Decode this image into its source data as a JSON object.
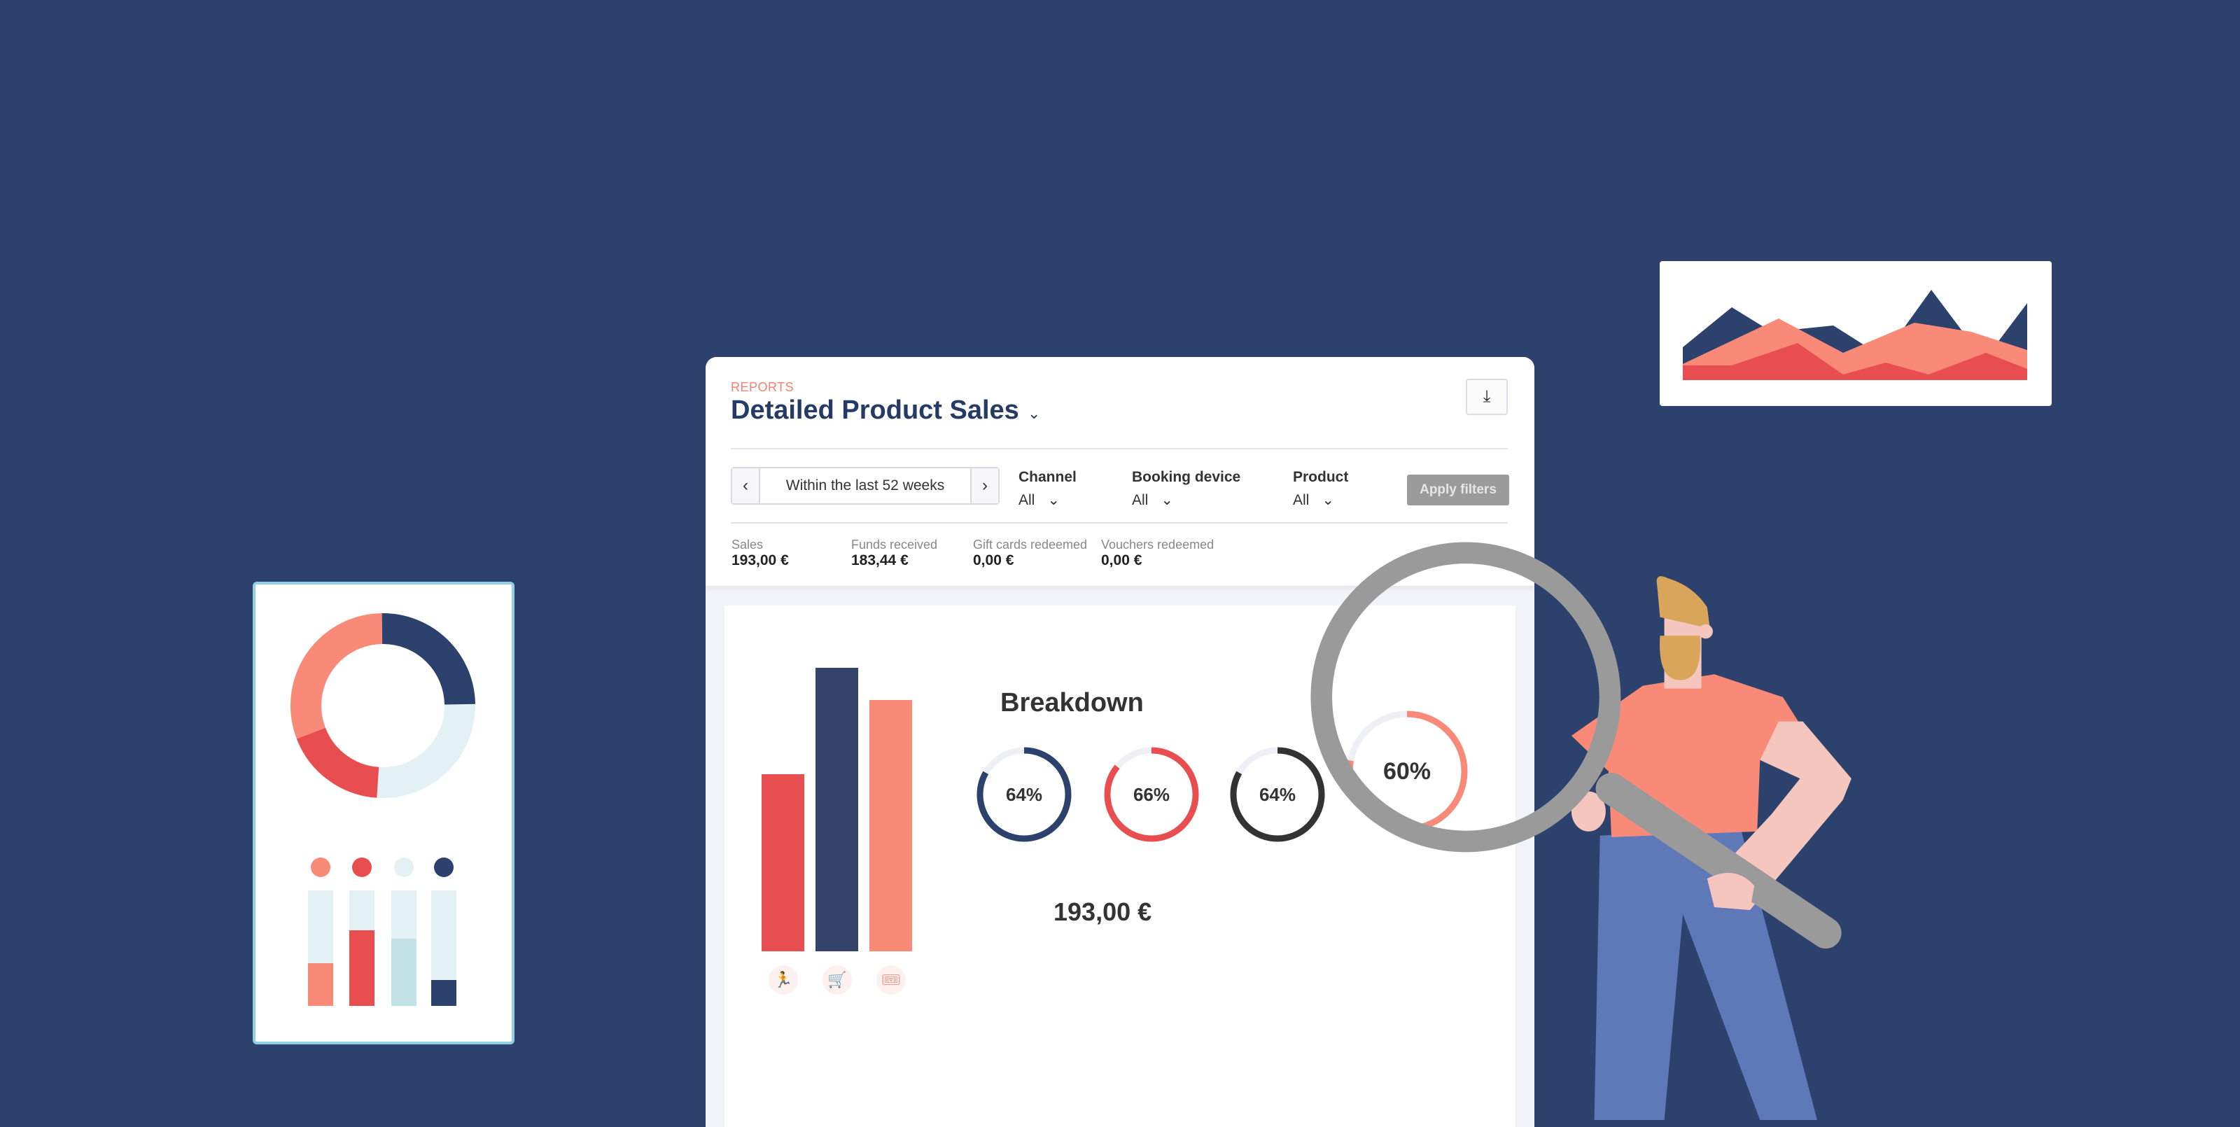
{
  "report": {
    "section": "REPORTS",
    "title": "Detailed Product Sales",
    "download_icon": "download-icon"
  },
  "filters": {
    "date_range": "Within the last 52 weeks",
    "channel": {
      "label": "Channel",
      "value": "All"
    },
    "booking_device": {
      "label": "Booking device",
      "value": "All"
    },
    "product": {
      "label": "Product",
      "value": "All"
    },
    "apply_label": "Apply filters"
  },
  "stats": [
    {
      "label": "Sales",
      "value": "193,00 €"
    },
    {
      "label": "Funds received",
      "value": "183,44 €"
    },
    {
      "label": "Gift cards redeemed",
      "value": "0,00 €"
    },
    {
      "label": "Vouchers redeemed",
      "value": "0,00 €"
    }
  ],
  "breakdown": {
    "title": "Breakdown",
    "total": "193,00 €",
    "bars": [
      {
        "value": 0.55,
        "color": "#e84e4f",
        "icon": "person-jumping-icon"
      },
      {
        "value": 0.88,
        "color": "#33436a",
        "icon": "shopping-cart-icon"
      },
      {
        "value": 0.78,
        "color": "#fa8a78",
        "icon": "ticket-icon"
      }
    ],
    "rings": [
      {
        "label": "64%",
        "percent": 64,
        "color": "#2c426d"
      },
      {
        "label": "66%",
        "percent": 66,
        "color": "#e84e4f"
      },
      {
        "label": "64%",
        "percent": 64,
        "color": "#333333"
      },
      {
        "label": "60%",
        "percent": 60,
        "color": "#fa8a78"
      }
    ]
  },
  "colors": {
    "background": "#2c426d",
    "accent": "#f5806c",
    "navy": "#263a66",
    "red": "#e84e4f",
    "salmon": "#fa8a78",
    "light_blue": "#e3f1f5"
  }
}
